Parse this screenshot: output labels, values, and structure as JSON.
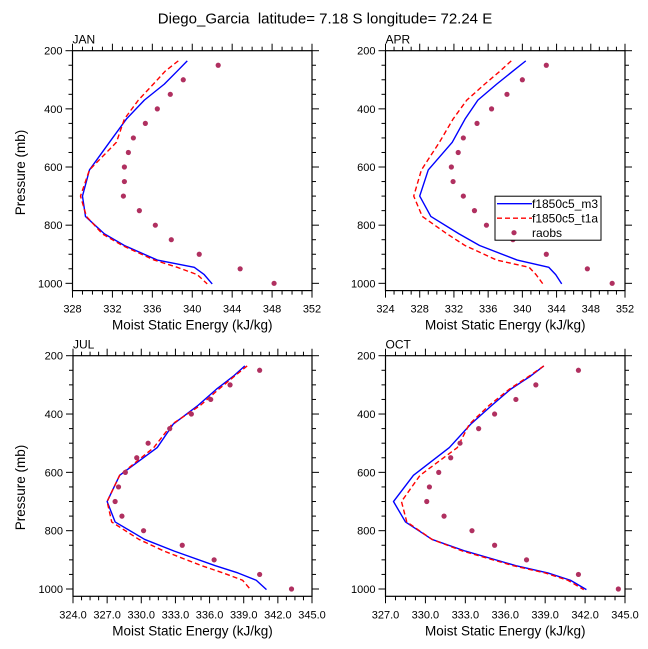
{
  "figure": {
    "title": "Diego_Garcia  latitude= 7.18 S longitude= 72.24 E"
  },
  "chart_data": [
    {
      "type": "line",
      "panel_label": "JAN",
      "xlabel": "Moist Static Energy (kJ/kg)",
      "ylabel": "Pressure (mb)",
      "xlim": [
        328,
        352
      ],
      "ylim": [
        200,
        1025
      ],
      "y_reversed": true,
      "grid": false,
      "xticks": [
        328,
        332,
        336,
        340,
        344,
        348,
        352
      ],
      "xtick_labels": [
        "328",
        "332",
        "336",
        "340",
        "344",
        "348",
        "352"
      ],
      "x_minor_step": 1,
      "yticks": [
        200,
        400,
        600,
        800,
        1000
      ],
      "ytick_labels": [
        "200",
        "400",
        "600",
        "800",
        "1000"
      ],
      "y_minor_step": 50,
      "legend": null,
      "series": [
        {
          "name": "f1850c5_m3",
          "style": "solid",
          "color": "#0000FF",
          "pressure": [
            235,
            270,
            315,
            370,
            435,
            515,
            610,
            700,
            770,
            830,
            870,
            920,
            945,
            970,
            1002
          ],
          "values": [
            339.5,
            338.5,
            337.2,
            335.2,
            333.4,
            331.7,
            329.7,
            329.0,
            329.3,
            331.2,
            333.2,
            336.5,
            340.2,
            341.2,
            342.0
          ]
        },
        {
          "name": "f1850c5_t1a",
          "style": "dashed",
          "color": "#FF0000",
          "pressure": [
            235,
            270,
            315,
            370,
            435,
            515,
            610,
            700,
            770,
            830,
            870,
            920,
            945,
            970,
            1002
          ],
          "values": [
            338.6,
            337.3,
            336.1,
            334.6,
            333.2,
            332.4,
            329.7,
            328.8,
            329.4,
            331.0,
            333.0,
            336.2,
            338.5,
            340.5,
            341.5
          ]
        },
        {
          "name": "raobs",
          "style": "markers",
          "color": "#B03060",
          "pressure": [
            250,
            300,
            350,
            400,
            450,
            500,
            550,
            600,
            650,
            700,
            750,
            800,
            850,
            900,
            950,
            1000
          ],
          "values": [
            342.6,
            339.1,
            337.8,
            336.5,
            335.3,
            334.1,
            333.6,
            333.2,
            333.2,
            333.1,
            334.7,
            336.3,
            337.9,
            340.7,
            344.8,
            348.2
          ]
        }
      ]
    },
    {
      "type": "line",
      "panel_label": "APR",
      "xlabel": "Moist Static Energy (kJ/kg)",
      "ylabel": "",
      "xlim": [
        324,
        352
      ],
      "ylim": [
        200,
        1025
      ],
      "y_reversed": true,
      "grid": false,
      "xticks": [
        324,
        328,
        332,
        336,
        340,
        344,
        348,
        352
      ],
      "xtick_labels": [
        "324",
        "328",
        "332",
        "336",
        "340",
        "344",
        "348",
        "352"
      ],
      "x_minor_step": 1,
      "yticks": [
        200,
        400,
        600,
        800,
        1000
      ],
      "ytick_labels": [
        "200",
        "400",
        "600",
        "800",
        "1000"
      ],
      "y_minor_step": 50,
      "legend": {
        "placement": "right",
        "entries": [
          {
            "label": "f1850c5_m3",
            "style": "solid",
            "color": "#0000FF"
          },
          {
            "label": "f1850c5_t1a",
            "style": "dashed",
            "color": "#FF0000"
          },
          {
            "label": "raobs",
            "style": "marker",
            "color": "#B03060"
          }
        ]
      },
      "series": [
        {
          "name": "f1850c5_m3",
          "style": "solid",
          "color": "#0000FF",
          "pressure": [
            235,
            270,
            315,
            370,
            435,
            515,
            610,
            700,
            770,
            830,
            870,
            920,
            945,
            970,
            1002
          ],
          "values": [
            340.4,
            338.9,
            337.0,
            334.8,
            333.3,
            331.8,
            329.0,
            328.0,
            329.3,
            332.6,
            335.0,
            339.4,
            343.1,
            343.9,
            344.6
          ]
        },
        {
          "name": "f1850c5_t1a",
          "style": "dashed",
          "color": "#FF0000",
          "pressure": [
            235,
            270,
            315,
            370,
            435,
            515,
            610,
            700,
            770,
            830,
            870,
            920,
            945,
            970,
            1002
          ],
          "values": [
            338.7,
            337.4,
            335.6,
            333.5,
            331.9,
            330.3,
            328.2,
            327.3,
            328.3,
            331.2,
            333.3,
            337.0,
            340.8,
            341.6,
            342.4
          ]
        },
        {
          "name": "raobs",
          "style": "markers",
          "color": "#B03060",
          "pressure": [
            250,
            300,
            350,
            400,
            450,
            500,
            550,
            600,
            650,
            700,
            750,
            800,
            850,
            900,
            950,
            1000
          ],
          "values": [
            342.8,
            340.0,
            338.2,
            336.4,
            334.7,
            333.1,
            332.5,
            331.7,
            331.9,
            333.1,
            334.4,
            335.8,
            338.9,
            342.8,
            347.6,
            350.5
          ]
        }
      ]
    },
    {
      "type": "line",
      "panel_label": "JUL",
      "xlabel": "Moist Static Energy (kJ/kg)",
      "ylabel": "Pressure (mb)",
      "xlim": [
        324,
        345
      ],
      "ylim": [
        200,
        1025
      ],
      "y_reversed": true,
      "grid": false,
      "xticks": [
        324,
        327,
        330,
        333,
        336,
        339,
        342,
        345
      ],
      "xtick_labels": [
        "324.0",
        "327.0",
        "330.0",
        "333.0",
        "336.0",
        "339.0",
        "342.0",
        "345.0"
      ],
      "x_minor_step": 0.75,
      "yticks": [
        200,
        400,
        600,
        800,
        1000
      ],
      "ytick_labels": [
        "200",
        "400",
        "600",
        "800",
        "1000"
      ],
      "y_minor_step": 50,
      "legend": null,
      "series": [
        {
          "name": "f1850c5_m3",
          "style": "solid",
          "color": "#0000FF",
          "pressure": [
            235,
            270,
            315,
            370,
            435,
            515,
            610,
            700,
            770,
            830,
            870,
            920,
            945,
            970,
            1002
          ],
          "values": [
            339.1,
            338.1,
            336.6,
            335.0,
            332.8,
            331.4,
            328.1,
            327.0,
            327.7,
            330.3,
            332.9,
            336.5,
            338.5,
            340.1,
            341.0
          ]
        },
        {
          "name": "f1850c5_t1a",
          "style": "dashed",
          "color": "#FF0000",
          "pressure": [
            235,
            270,
            315,
            370,
            435,
            515,
            610,
            700,
            770,
            830,
            870,
            920,
            945,
            970,
            1002
          ],
          "values": [
            339.3,
            338.2,
            336.8,
            335.2,
            332.7,
            331.1,
            328.1,
            327.0,
            327.4,
            329.8,
            332.0,
            335.3,
            337.2,
            338.9,
            339.6
          ]
        },
        {
          "name": "raobs",
          "style": "markers",
          "color": "#B03060",
          "pressure": [
            250,
            300,
            350,
            400,
            450,
            500,
            550,
            600,
            650,
            700,
            750,
            800,
            850,
            900,
            950,
            1000
          ],
          "values": [
            340.4,
            337.8,
            336.1,
            334.4,
            332.5,
            330.6,
            329.6,
            328.6,
            328.0,
            327.7,
            328.3,
            330.2,
            333.6,
            336.4,
            340.4,
            343.2
          ]
        }
      ]
    },
    {
      "type": "line",
      "panel_label": "OCT",
      "xlabel": "Moist Static Energy (kJ/kg)",
      "ylabel": "",
      "xlim": [
        327,
        345
      ],
      "ylim": [
        200,
        1025
      ],
      "y_reversed": true,
      "grid": false,
      "xticks": [
        327,
        330,
        333,
        336,
        339,
        342,
        345
      ],
      "xtick_labels": [
        "327.0",
        "330.0",
        "333.0",
        "336.0",
        "339.0",
        "342.0",
        "345.0"
      ],
      "x_minor_step": 0.75,
      "yticks": [
        200,
        400,
        600,
        800,
        1000
      ],
      "ytick_labels": [
        "200",
        "400",
        "600",
        "800",
        "1000"
      ],
      "y_minor_step": 50,
      "legend": null,
      "series": [
        {
          "name": "f1850c5_m3",
          "style": "solid",
          "color": "#0000FF",
          "pressure": [
            235,
            270,
            315,
            370,
            435,
            515,
            610,
            700,
            770,
            830,
            870,
            920,
            945,
            970,
            1002
          ],
          "values": [
            338.9,
            337.9,
            336.4,
            335.0,
            333.4,
            331.8,
            329.1,
            327.6,
            328.5,
            330.5,
            333.0,
            336.8,
            339.2,
            340.9,
            342.1
          ]
        },
        {
          "name": "f1850c5_t1a",
          "style": "dashed",
          "color": "#FF0000",
          "pressure": [
            235,
            270,
            315,
            370,
            435,
            515,
            610,
            700,
            770,
            830,
            870,
            920,
            945,
            970,
            1002
          ],
          "values": [
            338.9,
            337.8,
            336.3,
            334.8,
            333.3,
            332.4,
            329.6,
            328.2,
            328.6,
            330.5,
            332.8,
            336.6,
            339.0,
            340.7,
            341.9
          ]
        },
        {
          "name": "raobs",
          "style": "markers",
          "color": "#B03060",
          "pressure": [
            250,
            300,
            350,
            400,
            450,
            500,
            550,
            600,
            650,
            700,
            750,
            800,
            850,
            900,
            950,
            1000
          ],
          "values": [
            341.5,
            338.3,
            336.8,
            335.2,
            334.0,
            332.6,
            331.9,
            331.0,
            330.3,
            330.1,
            331.4,
            333.5,
            335.2,
            337.6,
            341.5,
            344.5
          ]
        }
      ]
    }
  ]
}
